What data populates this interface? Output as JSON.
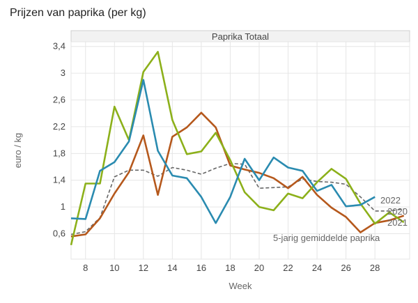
{
  "title": "Prijzen van paprika (per kg)",
  "chart_data": {
    "type": "line",
    "panel_title": "Paprika Totaal",
    "xlabel": "Week",
    "ylabel": "euro / kg",
    "xlim": [
      7,
      30.4
    ],
    "ylim": [
      0.22,
      3.47
    ],
    "xticks": [
      8,
      10,
      12,
      14,
      16,
      18,
      20,
      22,
      24,
      26,
      28
    ],
    "yticks": [
      0.6,
      1,
      1.4,
      1.8,
      2.2,
      2.6,
      3,
      3.4
    ],
    "ytick_labels": [
      "0,6",
      "1",
      "1,4",
      "1,8",
      "2,2",
      "2,6",
      "3",
      "3,4"
    ],
    "grid": true,
    "series": [
      {
        "name": "5-jarig gemiddelde paprika",
        "color": "#666666",
        "dashed": true,
        "x": [
          7,
          8,
          9,
          10,
          11,
          12,
          13,
          14,
          15,
          16,
          17,
          18,
          19,
          20,
          21,
          22,
          23,
          24,
          25,
          26,
          27,
          28,
          29,
          30
        ],
        "values": [
          0.59,
          0.63,
          0.84,
          1.45,
          1.55,
          1.55,
          1.46,
          1.59,
          1.55,
          1.49,
          1.58,
          1.65,
          1.64,
          1.28,
          1.29,
          1.3,
          1.42,
          1.38,
          1.37,
          1.34,
          1.15,
          0.94,
          0.94,
          0.97
        ]
      },
      {
        "name": "2020",
        "color": "#b5581c",
        "x": [
          7,
          8,
          9,
          10,
          11,
          12,
          13,
          14,
          15,
          16,
          17,
          18,
          19,
          20,
          21,
          22,
          23,
          24,
          25,
          26,
          27,
          28,
          29,
          30
        ],
        "values": [
          0.56,
          0.59,
          0.83,
          1.2,
          1.52,
          2.07,
          1.18,
          2.05,
          2.19,
          2.41,
          2.19,
          1.62,
          1.56,
          1.51,
          1.43,
          1.28,
          1.45,
          1.18,
          0.99,
          0.85,
          0.62,
          0.76,
          0.8,
          0.87
        ]
      },
      {
        "name": "2021",
        "color": "#8cb01a",
        "x": [
          7,
          8,
          9,
          10,
          11,
          12,
          13,
          14,
          15,
          16,
          17,
          18,
          19,
          20,
          21,
          22,
          23,
          24,
          25,
          26,
          27,
          28,
          29,
          30
        ],
        "values": [
          0.43,
          1.35,
          1.35,
          2.5,
          2.0,
          3.02,
          3.32,
          2.3,
          1.79,
          1.83,
          2.11,
          1.7,
          1.22,
          1.0,
          0.95,
          1.2,
          1.13,
          1.37,
          1.57,
          1.42,
          1.05,
          0.75,
          0.92,
          0.77
        ]
      },
      {
        "name": "2022",
        "color": "#2a8bb0",
        "x": [
          7,
          8,
          9,
          10,
          11,
          12,
          13,
          14,
          15,
          16,
          17,
          18,
          19,
          20,
          21,
          22,
          23,
          24,
          25,
          26,
          27,
          28
        ],
        "values": [
          0.83,
          0.82,
          1.54,
          1.67,
          1.98,
          2.9,
          1.84,
          1.47,
          1.43,
          1.15,
          0.76,
          1.15,
          1.72,
          1.4,
          1.74,
          1.59,
          1.54,
          1.24,
          1.33,
          1.01,
          1.03,
          1.15
        ]
      }
    ]
  }
}
